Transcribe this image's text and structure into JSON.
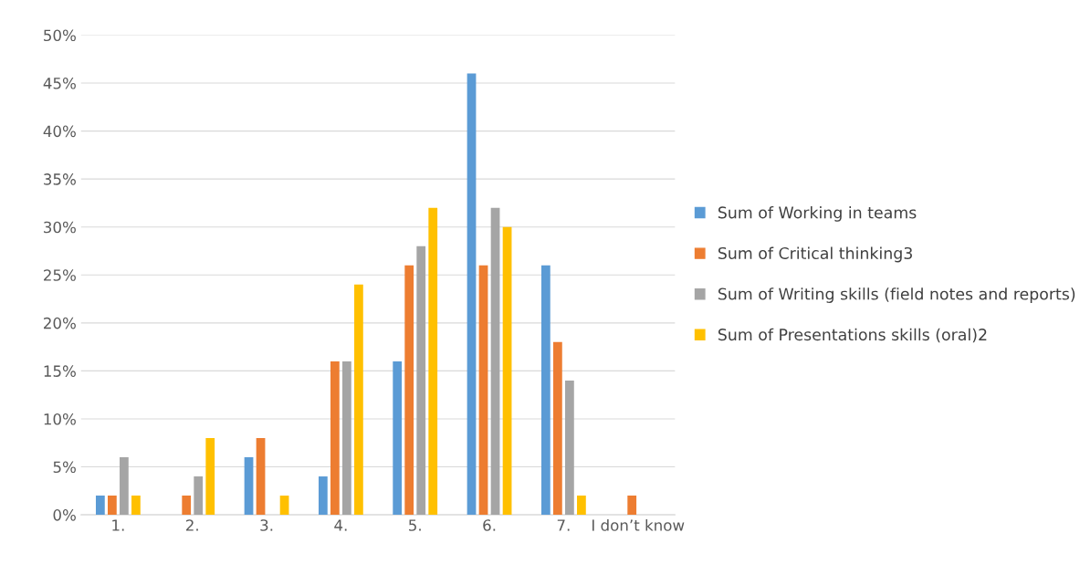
{
  "chart_data": {
    "type": "bar",
    "categories": [
      "1.",
      "2.",
      "3.",
      "4.",
      "5.",
      "6.",
      "7.",
      "I don’t know"
    ],
    "series": [
      {
        "name": "Sum of Working in teams",
        "color": "#5b9bd5",
        "values": [
          2,
          0,
          6,
          4,
          16,
          46,
          26,
          0
        ]
      },
      {
        "name": "Sum of Critical thinking3",
        "color": "#ed7d31",
        "values": [
          2,
          2,
          8,
          16,
          26,
          26,
          18,
          2
        ]
      },
      {
        "name": "Sum of Writing skills (field notes and reports)",
        "color": "#a5a5a5",
        "values": [
          6,
          4,
          0,
          16,
          28,
          32,
          14,
          0
        ]
      },
      {
        "name": "Sum of Presentations skills (oral)2",
        "color": "#ffc000",
        "values": [
          2,
          8,
          2,
          24,
          32,
          30,
          2,
          0
        ]
      }
    ],
    "ylim": [
      0,
      50
    ],
    "yticks": [
      {
        "value": 0,
        "label": "0%"
      },
      {
        "value": 5,
        "label": "5%"
      },
      {
        "value": 10,
        "label": "10%"
      },
      {
        "value": 15,
        "label": "15%"
      },
      {
        "value": 20,
        "label": "20%"
      },
      {
        "value": 25,
        "label": "25%"
      },
      {
        "value": 30,
        "label": "30%"
      },
      {
        "value": 35,
        "label": "35%"
      },
      {
        "value": 40,
        "label": "40%"
      },
      {
        "value": 45,
        "label": "45%"
      },
      {
        "value": 50,
        "label": "50%"
      }
    ],
    "grid": "y",
    "legend": "right"
  }
}
